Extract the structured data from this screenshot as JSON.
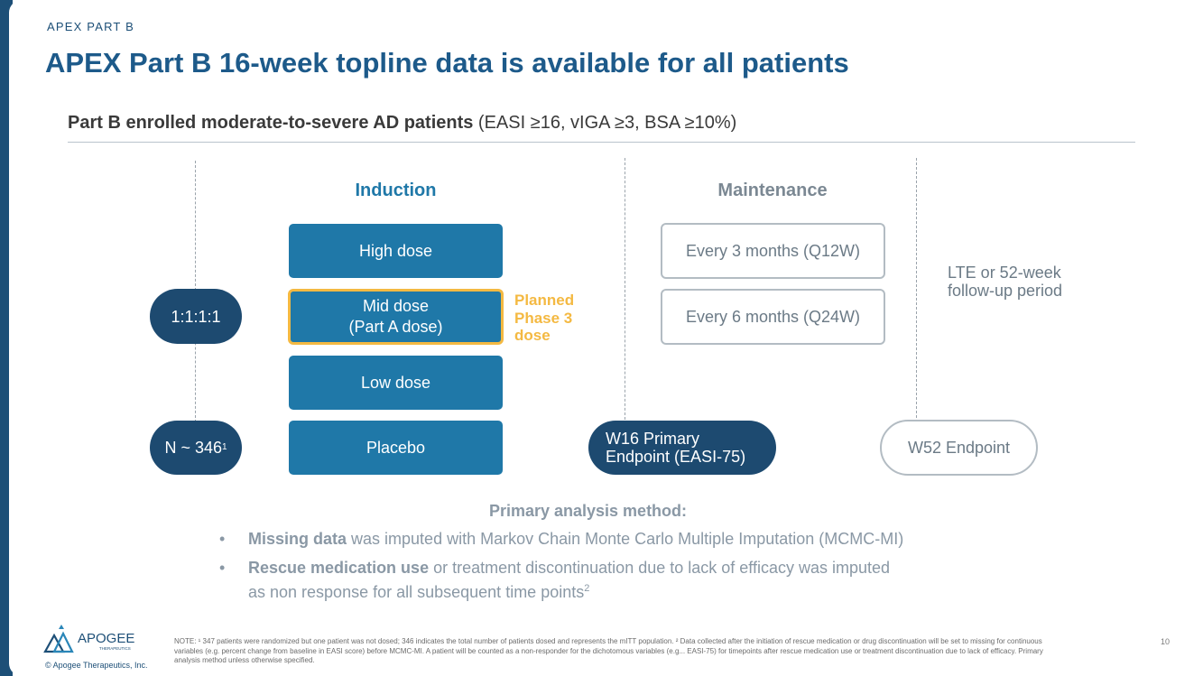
{
  "header": {
    "kicker": "APEX PART B",
    "title": "APEX Part B 16-week topline data is available for all patients"
  },
  "subtitle": {
    "bold": "Part B enrolled moderate-to-severe AD patients",
    "normal": " (EASI ≥16, vIGA ≥3, BSA ≥10%)"
  },
  "diagram": {
    "induction_label": "Induction",
    "maintenance_label": "Maintenance",
    "ratio": "1:1:1:1",
    "n_label": "N ~ 346",
    "n_sup": "1",
    "doses": {
      "high": "High dose",
      "mid_line1": "Mid dose",
      "mid_line2": "(Part A dose)",
      "low": "Low dose",
      "placebo": "Placebo"
    },
    "planned": [
      "Planned",
      "Phase 3",
      "dose"
    ],
    "maintenance": {
      "q12w": "Every 3 months (Q12W)",
      "q24w": "Every 6 months (Q24W)"
    },
    "w16_line1": "W16 Primary",
    "w16_line2": "Endpoint (EASI-75)",
    "lte_line1": "LTE or 52-week",
    "lte_line2": "follow-up period",
    "w52": "W52 Endpoint"
  },
  "analysis": {
    "heading": "Primary analysis method:",
    "bullet1_bold": "Missing data",
    "bullet1_rest": " was imputed with Markov Chain Monte Carlo Multiple Imputation (MCMC-MI)",
    "bullet2_bold": "Rescue medication use",
    "bullet2_rest": " or treatment discontinuation due to lack of efficacy was imputed",
    "bullet2_line2": "as non response for all subsequent time points",
    "bullet2_sup": "2"
  },
  "footer": {
    "logo_text": "APOGEE",
    "logo_sub": "THERAPEUTICS",
    "copyright": "© Apogee Therapeutics, Inc.",
    "note": "NOTE: ¹ 347 patients were randomized but one patient was not dosed; 346 indicates the total number of patients dosed and represents the mITT population. ² Data collected after the initiation of rescue medication or drug discontinuation will be set to missing for continuous variables (e.g. percent change from baseline in EASI score) before MCMC-MI. A patient will be counted as a non-responder for the dichotomous variables (e.g... EASI-75) for timepoints after rescue medication use or treatment discontinuation due to lack of efficacy. Primary analysis method unless otherwise specified.",
    "page_number": "10"
  },
  "colors": {
    "navy": "#1d4a70",
    "blue": "#1f78a8",
    "gold": "#f4b942",
    "gray_text": "#8a98a5"
  }
}
